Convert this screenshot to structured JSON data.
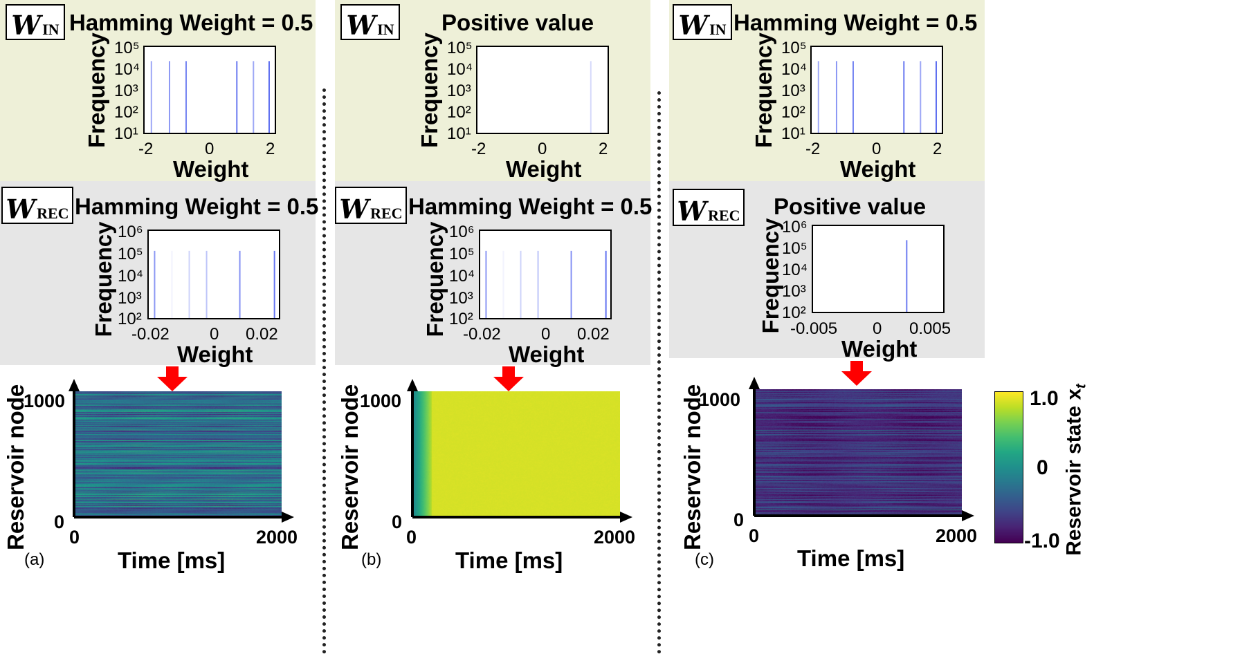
{
  "labels": {
    "frequency": "Frequency",
    "weight": "Weight",
    "reservoir_node": "Reservoir node",
    "time": "Time [ms]",
    "w": "W",
    "sub_in": "IN",
    "sub_rec": "REC",
    "colorbar_title": "Reservoir state x",
    "colorbar_sub": "t"
  },
  "colors": {
    "win_bg": "#eef0d8",
    "wrec_bg": "#e6e6e6",
    "hist_line": "#5b6cf0",
    "arrow": "#ff0000"
  },
  "panels": [
    {
      "id": "a",
      "letter": "(a)",
      "win_title": "Hamming Weight = 0.5",
      "wrec_title": "Hamming Weight = 0.5",
      "heatmap_mode": "mixed"
    },
    {
      "id": "b",
      "letter": "(b)",
      "win_title": "Positive value",
      "wrec_title": "Hamming Weight = 0.5",
      "heatmap_mode": "saturated"
    },
    {
      "id": "c",
      "letter": "(c)",
      "win_title": "Hamming Weight = 0.5",
      "wrec_title": "Positive value",
      "heatmap_mode": "dark"
    }
  ],
  "chart_data": [
    {
      "type": "bar",
      "name": "W_IN histogram (a)",
      "title": "Hamming Weight = 0.5",
      "xlabel": "Weight",
      "ylabel": "Frequency",
      "xlim": [
        -2.2,
        2.2
      ],
      "ylim_log10": [
        1,
        5
      ],
      "x_ticks": [
        "-2",
        "0",
        "2"
      ],
      "y_ticks": [
        "10¹",
        "10²",
        "10³",
        "10⁴",
        "10⁵"
      ],
      "bars": [
        {
          "x": -1.93,
          "log_freq": 4.3,
          "alpha": 0.6
        },
        {
          "x": -1.33,
          "log_freq": 4.3,
          "alpha": 0.7
        },
        {
          "x": -0.78,
          "log_freq": 4.3,
          "alpha": 0.85
        },
        {
          "x": 0.9,
          "log_freq": 4.3,
          "alpha": 0.9
        },
        {
          "x": 1.45,
          "log_freq": 4.3,
          "alpha": 0.6
        },
        {
          "x": 1.97,
          "log_freq": 4.3,
          "alpha": 1.0
        }
      ]
    },
    {
      "type": "bar",
      "name": "W_IN histogram (b)",
      "title": "Positive value",
      "xlabel": "Weight",
      "ylabel": "Frequency",
      "xlim": [
        -2.2,
        2.2
      ],
      "ylim_log10": [
        1,
        5
      ],
      "x_ticks": [
        "-2",
        "0",
        "2"
      ],
      "y_ticks": [
        "10¹",
        "10²",
        "10³",
        "10⁴",
        "10⁵"
      ],
      "bars": [
        {
          "x": 1.6,
          "log_freq": 4.3,
          "alpha": 0.25
        }
      ]
    },
    {
      "type": "bar",
      "name": "W_IN histogram (c)",
      "title": "Hamming Weight = 0.5",
      "xlabel": "Weight",
      "ylabel": "Frequency",
      "xlim": [
        -2.2,
        2.2
      ],
      "ylim_log10": [
        1,
        5
      ],
      "x_ticks": [
        "-2",
        "0",
        "2"
      ],
      "y_ticks": [
        "10¹",
        "10²",
        "10³",
        "10⁴",
        "10⁵"
      ],
      "bars": [
        {
          "x": -1.93,
          "log_freq": 4.3,
          "alpha": 0.6
        },
        {
          "x": -1.33,
          "log_freq": 4.3,
          "alpha": 0.7
        },
        {
          "x": -0.78,
          "log_freq": 4.3,
          "alpha": 0.85
        },
        {
          "x": 0.9,
          "log_freq": 4.3,
          "alpha": 0.9
        },
        {
          "x": 1.45,
          "log_freq": 4.3,
          "alpha": 0.6
        },
        {
          "x": 1.97,
          "log_freq": 4.3,
          "alpha": 1.0
        }
      ]
    },
    {
      "type": "bar",
      "name": "W_REC histogram (a)",
      "title": "Hamming Weight = 0.5",
      "xlabel": "Weight",
      "ylabel": "Frequency",
      "xlim": [
        -0.023,
        0.023
      ],
      "ylim_log10": [
        2,
        6
      ],
      "x_ticks": [
        "-0.02",
        "0",
        "0.02"
      ],
      "y_ticks": [
        "10²",
        "10³",
        "10⁴",
        "10⁵",
        "10⁶"
      ],
      "bars": [
        {
          "x": -0.0205,
          "log_freq": 5.05,
          "alpha": 0.7
        },
        {
          "x": -0.0145,
          "log_freq": 5.05,
          "alpha": 0.08
        },
        {
          "x": -0.0085,
          "log_freq": 5.05,
          "alpha": 0.3
        },
        {
          "x": -0.0025,
          "log_freq": 5.05,
          "alpha": 0.4
        },
        {
          "x": 0.009,
          "log_freq": 5.05,
          "alpha": 0.75
        },
        {
          "x": 0.021,
          "log_freq": 5.05,
          "alpha": 0.95
        }
      ]
    },
    {
      "type": "bar",
      "name": "W_REC histogram (b)",
      "title": "Hamming Weight = 0.5",
      "xlabel": "Weight",
      "ylabel": "Frequency",
      "xlim": [
        -0.023,
        0.023
      ],
      "ylim_log10": [
        2,
        6
      ],
      "x_ticks": [
        "-0.02",
        "0",
        "0.02"
      ],
      "y_ticks": [
        "10²",
        "10³",
        "10⁴",
        "10⁵",
        "10⁶"
      ],
      "bars": [
        {
          "x": -0.0205,
          "log_freq": 5.05,
          "alpha": 0.7
        },
        {
          "x": -0.0145,
          "log_freq": 5.05,
          "alpha": 0.08
        },
        {
          "x": -0.0085,
          "log_freq": 5.05,
          "alpha": 0.3
        },
        {
          "x": -0.0025,
          "log_freq": 5.05,
          "alpha": 0.4
        },
        {
          "x": 0.009,
          "log_freq": 5.05,
          "alpha": 0.75
        },
        {
          "x": 0.021,
          "log_freq": 5.05,
          "alpha": 0.95
        }
      ]
    },
    {
      "type": "bar",
      "name": "W_REC histogram (c)",
      "title": "Positive value",
      "xlabel": "Weight",
      "ylabel": "Frequency",
      "xlim": [
        -0.0072,
        0.0072
      ],
      "ylim_log10": [
        2,
        6
      ],
      "x_ticks": [
        "-0.005",
        "0",
        "0.005"
      ],
      "y_ticks": [
        "10²",
        "10³",
        "10⁴",
        "10⁵",
        "10⁶"
      ],
      "bars": [
        {
          "x": 0.0031,
          "log_freq": 5.3,
          "alpha": 0.9
        }
      ]
    },
    {
      "type": "heatmap",
      "name": "Reservoir state (a)",
      "xlabel": "Time [ms]",
      "ylabel": "Reservoir node",
      "xlim": [
        0,
        2000
      ],
      "ylim": [
        0,
        1000
      ],
      "x_ticks": [
        "0",
        "2000"
      ],
      "y_ticks": [
        "0",
        "1000"
      ]
    },
    {
      "type": "heatmap",
      "name": "Reservoir state (b)",
      "xlabel": "Time [ms]",
      "ylabel": "Reservoir node",
      "xlim": [
        0,
        2000
      ],
      "ylim": [
        0,
        1000
      ],
      "x_ticks": [
        "0",
        "2000"
      ],
      "y_ticks": [
        "0",
        "1000"
      ]
    },
    {
      "type": "heatmap",
      "name": "Reservoir state (c)",
      "xlabel": "Time [ms]",
      "ylabel": "Reservoir node",
      "xlim": [
        0,
        2000
      ],
      "ylim": [
        0,
        1000
      ],
      "x_ticks": [
        "0",
        "2000"
      ],
      "y_ticks": [
        "0",
        "1000"
      ]
    },
    {
      "type": "heatmap",
      "name": "Colorbar",
      "title": "Reservoir state x_t",
      "range": [
        -1.0,
        1.0
      ],
      "ticks": [
        "1.0",
        "0",
        "-1.0"
      ],
      "colormap": "viridis"
    }
  ]
}
